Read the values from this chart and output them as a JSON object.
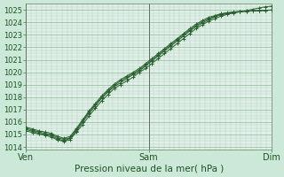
{
  "title": "Pression niveau de la mer( hPa )",
  "bg_color": "#cce8d8",
  "plot_bg_color": "#e0f0e8",
  "line_color": "#2a6030",
  "marker_color": "#2a6030",
  "x_ticks_labels": [
    "Ven",
    "Sam",
    "Dim"
  ],
  "x_ticks_pos": [
    0.0,
    1.0,
    2.0
  ],
  "ylim": [
    1013.8,
    1025.5
  ],
  "yticks": [
    1014,
    1015,
    1016,
    1017,
    1018,
    1019,
    1020,
    1021,
    1022,
    1023,
    1024,
    1025
  ],
  "series": [
    [
      1015.3,
      1015.15,
      1015.05,
      1014.95,
      1014.8,
      1014.55,
      1014.45,
      1014.6,
      1015.2,
      1015.8,
      1016.5,
      1017.1,
      1017.7,
      1018.2,
      1018.7,
      1019.0,
      1019.3,
      1019.6,
      1020.0,
      1020.3,
      1020.7,
      1021.1,
      1021.5,
      1021.9,
      1022.3,
      1022.7,
      1023.1,
      1023.5,
      1023.8,
      1024.1,
      1024.3,
      1024.5,
      1024.65,
      1024.75,
      1024.85,
      1024.95,
      1025.05,
      1025.15,
      1025.25,
      1025.3
    ],
    [
      1015.4,
      1015.25,
      1015.1,
      1015.0,
      1014.9,
      1014.65,
      1014.5,
      1014.7,
      1015.3,
      1016.0,
      1016.7,
      1017.3,
      1017.9,
      1018.4,
      1018.85,
      1019.15,
      1019.5,
      1019.8,
      1020.1,
      1020.5,
      1020.9,
      1021.3,
      1021.7,
      1022.1,
      1022.5,
      1022.9,
      1023.3,
      1023.65,
      1023.95,
      1024.2,
      1024.45,
      1024.6,
      1024.7,
      1024.8,
      1024.85,
      1024.9,
      1024.92,
      1024.95,
      1024.97,
      1025.0
    ],
    [
      1015.5,
      1015.35,
      1015.2,
      1015.1,
      1015.0,
      1014.75,
      1014.6,
      1014.75,
      1015.4,
      1016.1,
      1016.8,
      1017.4,
      1018.0,
      1018.5,
      1018.95,
      1019.3,
      1019.6,
      1019.9,
      1020.2,
      1020.6,
      1021.0,
      1021.4,
      1021.8,
      1022.2,
      1022.6,
      1023.0,
      1023.4,
      1023.75,
      1024.05,
      1024.3,
      1024.5,
      1024.65,
      1024.75,
      1024.82,
      1024.87,
      1024.9,
      1024.92,
      1024.94,
      1024.96,
      1024.98
    ],
    [
      1015.6,
      1015.45,
      1015.3,
      1015.2,
      1015.1,
      1014.85,
      1014.7,
      1014.85,
      1015.5,
      1016.2,
      1016.9,
      1017.5,
      1018.1,
      1018.6,
      1019.05,
      1019.4,
      1019.7,
      1020.0,
      1020.3,
      1020.7,
      1021.1,
      1021.5,
      1021.9,
      1022.3,
      1022.7,
      1023.1,
      1023.5,
      1023.85,
      1024.15,
      1024.4,
      1024.55,
      1024.7,
      1024.78,
      1024.84,
      1024.88,
      1024.91,
      1024.93,
      1024.95,
      1024.97,
      1024.99
    ]
  ],
  "n_points": 40,
  "x_start": 0.0,
  "x_end": 2.0,
  "vline_color": "#607060",
  "major_grid_color": "#90b898",
  "minor_grid_color": "#b0d0b8",
  "xlabel_fontsize": 7.5,
  "ytick_fontsize": 6.0,
  "xtick_fontsize": 7.0
}
